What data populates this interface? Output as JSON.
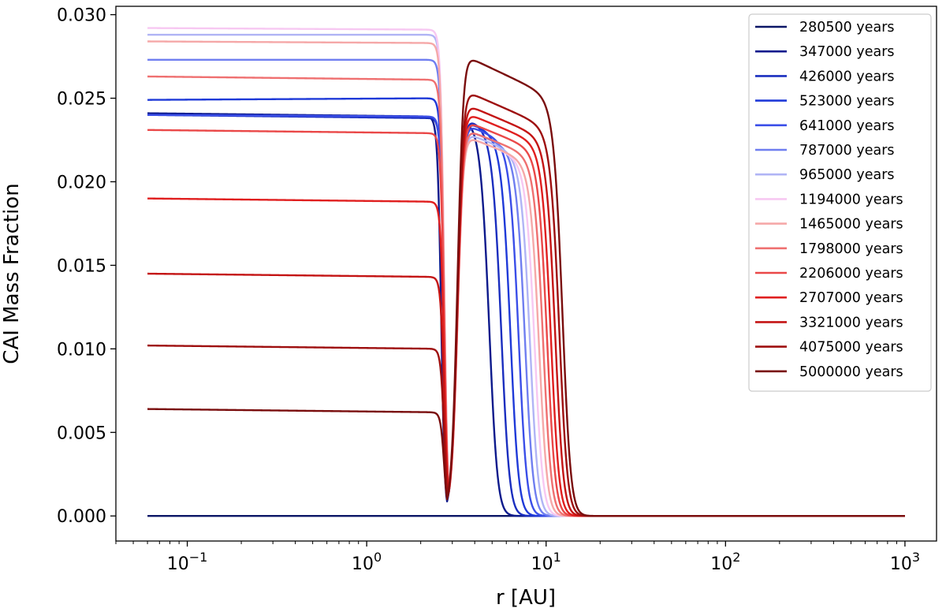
{
  "chart_data": {
    "type": "line",
    "xlabel": "r [AU]",
    "ylabel": "CAI Mass Fraction",
    "xscale": "log",
    "xlim": [
      0.04,
      1500
    ],
    "ylim": [
      -0.0015,
      0.0305
    ],
    "yticks": [
      "0.000",
      "0.005",
      "0.010",
      "0.015",
      "0.020",
      "0.025",
      "0.030"
    ],
    "xticks": [
      {
        "base": "10",
        "exp": "−1",
        "value": 0.1
      },
      {
        "base": "10",
        "exp": "0",
        "value": 1
      },
      {
        "base": "10",
        "exp": "1",
        "value": 10
      },
      {
        "base": "10",
        "exp": "2",
        "value": 100
      },
      {
        "base": "10",
        "exp": "3",
        "value": 1000
      }
    ],
    "grid": false,
    "legend_position": "top-right",
    "x_range": [
      0.06,
      1000
    ],
    "series": [
      {
        "name": "280500 years",
        "color": "#0b1666",
        "inner": 0.0,
        "inner_end": 0.0,
        "r_edge": 2.9,
        "peak": 0.0,
        "front": 3.0
      },
      {
        "name": "347000 years",
        "color": "#0d1a8c",
        "inner": 0.0241,
        "inner_end": 0.0239,
        "r_edge": 2.6,
        "peak": 0.024,
        "front": 4.8
      },
      {
        "name": "426000 years",
        "color": "#1a2ebf",
        "inner": 0.024,
        "inner_end": 0.0238,
        "r_edge": 2.7,
        "peak": 0.0238,
        "front": 5.6
      },
      {
        "name": "523000 years",
        "color": "#1f3ad8",
        "inner": 0.0249,
        "inner_end": 0.025,
        "r_edge": 2.7,
        "peak": 0.0236,
        "front": 6.3
      },
      {
        "name": "641000 years",
        "color": "#3a4ee8",
        "inner": 0.024,
        "inner_end": 0.0239,
        "r_edge": 2.7,
        "peak": 0.0234,
        "front": 7.0
      },
      {
        "name": "787000 years",
        "color": "#6f7ef0",
        "inner": 0.0273,
        "inner_end": 0.0273,
        "r_edge": 2.7,
        "peak": 0.0231,
        "front": 7.6
      },
      {
        "name": "965000 years",
        "color": "#b0b4f5",
        "inner": 0.0288,
        "inner_end": 0.0288,
        "r_edge": 2.7,
        "peak": 0.0229,
        "front": 8.1
      },
      {
        "name": "1194000 years",
        "color": "#f7c8f2",
        "inner": 0.0292,
        "inner_end": 0.0291,
        "r_edge": 2.7,
        "peak": 0.0227,
        "front": 8.6
      },
      {
        "name": "1465000 years",
        "color": "#f5a8a8",
        "inner": 0.0284,
        "inner_end": 0.0283,
        "r_edge": 2.7,
        "peak": 0.0227,
        "front": 9.1
      },
      {
        "name": "1798000 years",
        "color": "#ef7070",
        "inner": 0.0263,
        "inner_end": 0.0261,
        "r_edge": 2.7,
        "peak": 0.0231,
        "front": 9.6
      },
      {
        "name": "2206000 years",
        "color": "#ea4848",
        "inner": 0.0231,
        "inner_end": 0.0229,
        "r_edge": 2.7,
        "peak": 0.0236,
        "front": 10.1
      },
      {
        "name": "2707000 years",
        "color": "#e01f1f",
        "inner": 0.019,
        "inner_end": 0.0188,
        "r_edge": 2.7,
        "peak": 0.0241,
        "front": 10.6
      },
      {
        "name": "3321000 years",
        "color": "#c41414",
        "inner": 0.0145,
        "inner_end": 0.0143,
        "r_edge": 2.7,
        "peak": 0.0246,
        "front": 11.2
      },
      {
        "name": "4075000 years",
        "color": "#9e0f0f",
        "inner": 0.0102,
        "inner_end": 0.01,
        "r_edge": 2.7,
        "peak": 0.0254,
        "front": 11.8
      },
      {
        "name": "5000000 years",
        "color": "#7a0d0d",
        "inner": 0.0064,
        "inner_end": 0.0062,
        "r_edge": 2.7,
        "peak": 0.0275,
        "front": 12.3
      }
    ]
  }
}
